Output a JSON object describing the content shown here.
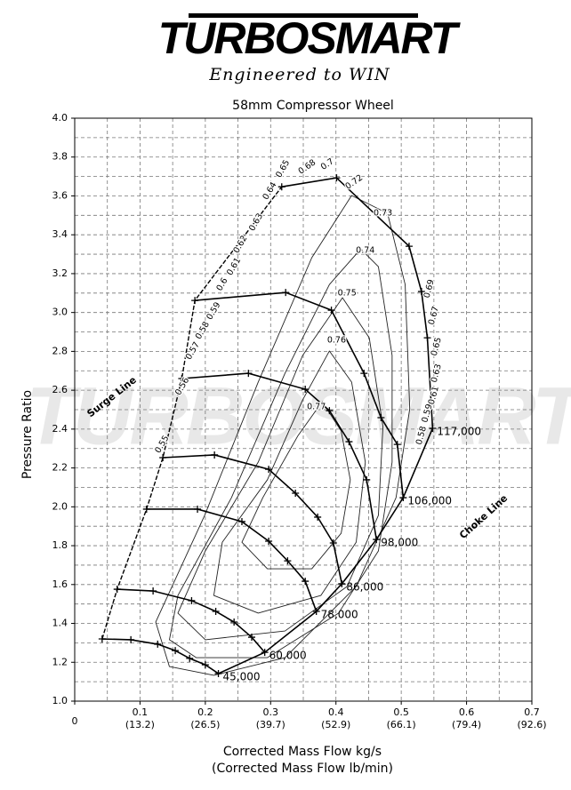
{
  "header": {
    "logo": "TURBOSMART",
    "tagline": "Engineered to WIN"
  },
  "chart_data": {
    "type": "compressor-map",
    "title": "58mm Compressor Wheel",
    "x_label": "Corrected Mass Flow kg/s",
    "x_label_secondary": "(Corrected Mass Flow lb/min)",
    "y_label": "Pressure Ratio",
    "xlim": [
      0,
      0.7
    ],
    "ylim": [
      1.0,
      4.0
    ],
    "xticks": [
      0,
      0.1,
      0.2,
      0.3,
      0.4,
      0.5,
      0.6,
      0.7
    ],
    "xticks_secondary": [
      null,
      "(13.2)",
      "(26.5)",
      "(39.7)",
      "(52.9)",
      "(66.1)",
      "(79.4)",
      "(92.6)"
    ],
    "yticks": [
      {
        "value": 1.0,
        "label": "1.0"
      },
      1.2,
      1.4,
      1.6,
      1.8,
      {
        "value": 2.0,
        "label": "2.0"
      },
      2.2,
      2.4,
      2.6,
      2.8,
      {
        "value": 3.0,
        "label": "3.0"
      },
      3.2,
      3.4,
      3.6,
      3.8,
      {
        "value": 4.0,
        "label": "4.0"
      }
    ],
    "xminorticks": [
      0.05,
      0.15,
      0.25,
      0.35,
      0.45,
      0.55,
      0.65
    ],
    "yminorticks": [
      1.1,
      1.3,
      1.5,
      1.7,
      1.9,
      2.1,
      2.3,
      2.5,
      2.7,
      2.9,
      3.1,
      3.3,
      3.5,
      3.7,
      3.9
    ],
    "grid": true,
    "color": "#000000",
    "series": [
      {
        "name": "45,000",
        "x": [
          0.042,
          0.086,
          0.127,
          0.154,
          0.176,
          0.2,
          0.22
        ],
        "values": [
          1.32,
          1.316,
          1.293,
          1.26,
          1.22,
          1.187,
          1.142
        ]
      },
      {
        "name": "60,000",
        "x": [
          0.065,
          0.12,
          0.179,
          0.216,
          0.244,
          0.271,
          0.291
        ],
        "values": [
          1.576,
          1.567,
          1.517,
          1.462,
          1.407,
          1.329,
          1.251
        ]
      },
      {
        "name": "78,000",
        "x": [
          0.11,
          0.188,
          0.256,
          0.297,
          0.326,
          0.353,
          0.37
        ],
        "values": [
          1.988,
          1.988,
          1.924,
          1.823,
          1.722,
          1.617,
          1.462
        ]
      },
      {
        "name": "86,000",
        "x": [
          0.135,
          0.214,
          0.297,
          0.338,
          0.372,
          0.396,
          0.409
        ],
        "values": [
          2.253,
          2.267,
          2.193,
          2.07,
          1.947,
          1.814,
          1.604
        ]
      },
      {
        "name": "98,000",
        "x": [
          0.164,
          0.266,
          0.353,
          0.39,
          0.42,
          0.447,
          0.462
        ],
        "values": [
          2.66,
          2.687,
          2.605,
          2.495,
          2.335,
          2.139,
          1.832
        ]
      },
      {
        "name": "106,000",
        "x": [
          0.184,
          0.323,
          0.393,
          0.443,
          0.469,
          0.494,
          0.503
        ],
        "values": [
          3.062,
          3.103,
          3.012,
          2.687,
          2.459,
          2.321,
          2.047
        ]
      },
      {
        "name": "117,000",
        "x": [
          0.317,
          0.401,
          0.512,
          0.531,
          0.54,
          0.548
        ],
        "values": [
          3.647,
          3.693,
          3.341,
          3.108,
          2.87,
          2.404
        ]
      }
    ],
    "contours": [
      {
        "name": "0.73",
        "x": [
          0.424,
          0.479,
          0.506,
          0.513,
          0.492,
          0.431,
          0.322,
          0.213,
          0.145,
          0.124,
          0.199,
          0.281,
          0.363
        ],
        "values": [
          3.602,
          3.51,
          3.144,
          2.504,
          2.047,
          1.59,
          1.224,
          1.133,
          1.178,
          1.407,
          1.956,
          2.642,
          3.282
        ]
      },
      {
        "name": "0.74",
        "x": [
          0.438,
          0.465,
          0.486,
          0.486,
          0.465,
          0.404,
          0.295,
          0.186,
          0.145,
          0.158,
          0.24,
          0.322,
          0.39
        ],
        "values": [
          3.327,
          3.236,
          2.779,
          2.23,
          1.773,
          1.453,
          1.224,
          1.224,
          1.316,
          1.544,
          2.047,
          2.687,
          3.144
        ]
      },
      {
        "name": "0.75",
        "x": [
          0.41,
          0.451,
          0.472,
          0.465,
          0.417,
          0.322,
          0.2,
          0.158,
          0.2,
          0.281,
          0.349
        ],
        "values": [
          3.076,
          2.87,
          2.413,
          1.956,
          1.59,
          1.361,
          1.316,
          1.453,
          1.773,
          2.23,
          2.779
        ]
      },
      {
        "name": "0.76",
        "x": [
          0.39,
          0.424,
          0.445,
          0.431,
          0.377,
          0.281,
          0.213,
          0.226,
          0.295,
          0.349
        ],
        "values": [
          2.802,
          2.642,
          2.23,
          1.818,
          1.544,
          1.453,
          1.544,
          1.818,
          2.139,
          2.55
        ]
      },
      {
        "name": "0.77",
        "x": [
          0.379,
          0.408,
          0.422,
          0.408,
          0.363,
          0.295,
          0.256,
          0.288,
          0.342
        ],
        "values": [
          2.541,
          2.39,
          2.139,
          1.864,
          1.681,
          1.681,
          1.818,
          2.047,
          2.367
        ]
      }
    ],
    "efficiency_labels": [
      {
        "label": "0.55",
        "x": 0.134,
        "y": 2.321
      },
      {
        "label": "0.56",
        "x": 0.165,
        "y": 2.619
      },
      {
        "label": "0.57",
        "x": 0.181,
        "y": 2.802
      },
      {
        "label": "0.58",
        "x": 0.196,
        "y": 2.907
      },
      {
        "label": "0.59",
        "x": 0.213,
        "y": 3.007
      },
      {
        "label": "0.6",
        "x": 0.226,
        "y": 3.144
      },
      {
        "label": "0.61",
        "x": 0.244,
        "y": 3.236
      },
      {
        "label": "0.62",
        "x": 0.254,
        "y": 3.35
      },
      {
        "label": "0.63",
        "x": 0.278,
        "y": 3.464
      },
      {
        "label": "0.64",
        "x": 0.299,
        "y": 3.625
      },
      {
        "label": "0.65",
        "x": 0.319,
        "y": 3.739
      },
      {
        "label": "0.68",
        "x": 0.356,
        "y": 3.748
      },
      {
        "label": "0.7",
        "x": 0.387,
        "y": 3.762
      },
      {
        "label": "0.72",
        "x": 0.428,
        "y": 3.67
      },
      {
        "label": "0.73",
        "x": 0.472,
        "y": 3.51
      },
      {
        "label": "0.74",
        "x": 0.445,
        "y": 3.318
      },
      {
        "label": "0.75",
        "x": 0.417,
        "y": 3.099
      },
      {
        "label": "0.76",
        "x": 0.401,
        "y": 2.856
      },
      {
        "label": "0.77",
        "x": 0.37,
        "y": 2.513
      },
      {
        "label": "0.69",
        "x": 0.543,
        "y": 3.122
      },
      {
        "label": "0.67",
        "x": 0.55,
        "y": 2.984
      },
      {
        "label": "0.65",
        "x": 0.554,
        "y": 2.824
      },
      {
        "label": "0.63",
        "x": 0.554,
        "y": 2.687
      },
      {
        "label": "0.61",
        "x": 0.55,
        "y": 2.573
      },
      {
        "label": "0.59",
        "x": 0.54,
        "y": 2.481
      },
      {
        "label": "0.58",
        "x": 0.531,
        "y": 2.367
      }
    ],
    "annotations": {
      "surge": "Surge Line",
      "choke": "Choke Line"
    }
  }
}
